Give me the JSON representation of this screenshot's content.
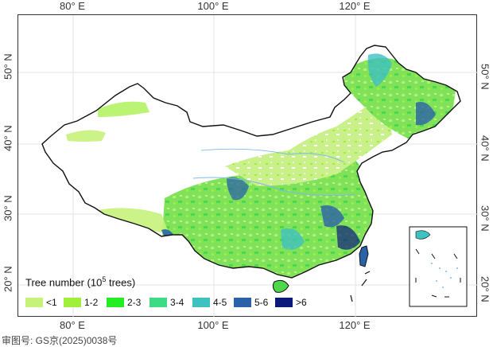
{
  "map": {
    "legend": {
      "title_prefix": "Tree number (10",
      "title_exp": "5",
      "title_suffix": " trees)",
      "items": [
        {
          "label": "<1",
          "color": "#c7f27a"
        },
        {
          "label": "1-2",
          "color": "#9ef03a"
        },
        {
          "label": "2-3",
          "color": "#22ee22"
        },
        {
          "label": "3-4",
          "color": "#3ddc84"
        },
        {
          "label": "4-5",
          "color": "#3ec1c1"
        },
        {
          "label": "5-6",
          "color": "#2a62a8"
        },
        {
          "label": ">6",
          "color": "#0b1a7a"
        }
      ]
    },
    "lon_labels": [
      "80° E",
      "100° E",
      "120° E"
    ],
    "lat_labels": [
      "50° N",
      "40° N",
      "30° N",
      "20° N"
    ],
    "approval_number": "审图号: GS京(2025)0038号"
  }
}
